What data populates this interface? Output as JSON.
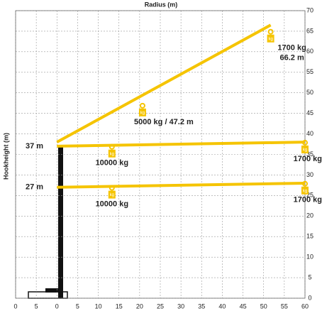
{
  "chart_data": {
    "type": "line",
    "title": "Radius (m)",
    "y_label": "Hookheight (m)",
    "xlim": [
      -10,
      60
    ],
    "xticks": [
      {
        "value": -10,
        "label": "0"
      },
      {
        "value": -5,
        "label": "5"
      },
      0,
      5,
      10,
      15,
      20,
      25,
      30,
      35,
      40,
      45,
      50,
      55,
      60
    ],
    "ylim": [
      0,
      70
    ],
    "yticks": [
      0,
      5,
      10,
      15,
      20,
      25,
      30,
      35,
      40,
      45,
      50,
      55,
      60,
      65,
      70
    ],
    "grid": true,
    "series": [
      {
        "color": "#f5c400",
        "x": [
          0,
          51.7
        ],
        "values": [
          38,
          66.5
        ]
      },
      {
        "color": "#f5c400",
        "x": [
          0,
          60
        ],
        "values": [
          37,
          38
        ]
      },
      {
        "color": "#f5c400",
        "x": [
          0,
          60
        ],
        "values": [
          27,
          28
        ]
      }
    ],
    "hook_label": "kg",
    "height_labels": [
      {
        "text": "37 m",
        "y": 37
      },
      {
        "text": "27 m",
        "y": 27
      }
    ],
    "annotations": [
      {
        "text": "1700 kg",
        "x": 51.7,
        "y": 64
      },
      {
        "text": "66.2 m",
        "x": 51.7,
        "y": 64
      },
      {
        "text": "5000 kg / 47.2 m",
        "x": 20.7,
        "y": 46
      },
      {
        "text": "10000 kg",
        "x": 13.3,
        "y": 36
      },
      {
        "text": "1700 kg",
        "x": 60,
        "y": 37
      },
      {
        "text": "10000 kg",
        "x": 13.3,
        "y": 26
      },
      {
        "text": "1700 kg",
        "x": 60,
        "y": 27
      }
    ]
  }
}
